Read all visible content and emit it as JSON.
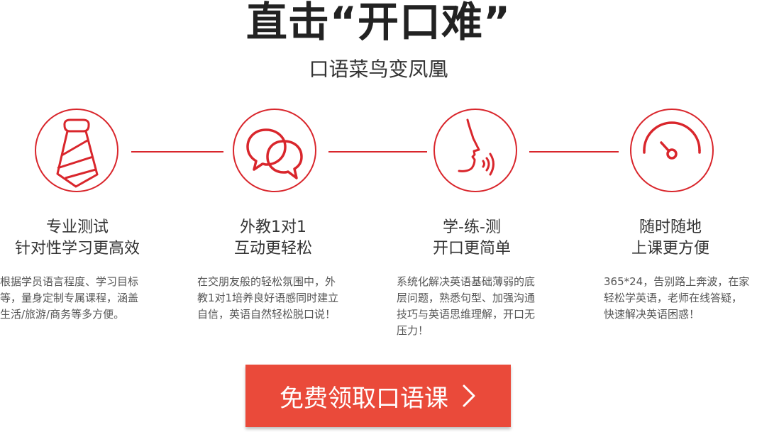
{
  "header": {
    "title": "直击“开口难”",
    "subtitle": "口语菜鸟变凤凰"
  },
  "features": [
    {
      "icon": "necktie-icon",
      "title_line1": "专业测试",
      "title_line2": "针对性学习更高效",
      "desc_line1": "根据学员语言程度、学习目标",
      "desc_line2": "等，量身定制专属课程，涵盖",
      "desc_line3": "生活/旅游/商务等多方便。"
    },
    {
      "icon": "chat-bubbles-icon",
      "title_line1": "外教1对1",
      "title_line2": "互动更轻松",
      "desc_line1": "在交朋友般的轻松氛围中，外",
      "desc_line2": "教1对1培养良好语感同时建立",
      "desc_line3": "自信，英语自然轻松脱口说！"
    },
    {
      "icon": "speaking-face-icon",
      "title_line1": "学-练-测",
      "title_line2": "开口更简单",
      "desc_line1": "系统化解决英语基础薄弱的底",
      "desc_line2": "层问题，熟悉句型、加强沟通",
      "desc_line3": "技巧与英语思维理解，开口无",
      "desc_line4": "压力！"
    },
    {
      "icon": "speedometer-icon",
      "title_line1": "随时随地",
      "title_line2": "上课更方便",
      "desc_line1": "365*24，告别路上奔波，在家",
      "desc_line2": "轻松学英语，老师在线答疑，",
      "desc_line3": "快速解决英语困惑！"
    }
  ],
  "cta": {
    "label": "免费领取口语课",
    "icon": "chevron-right-icon"
  },
  "colors": {
    "accent": "#d9262c",
    "button": "#ea4a3a"
  }
}
